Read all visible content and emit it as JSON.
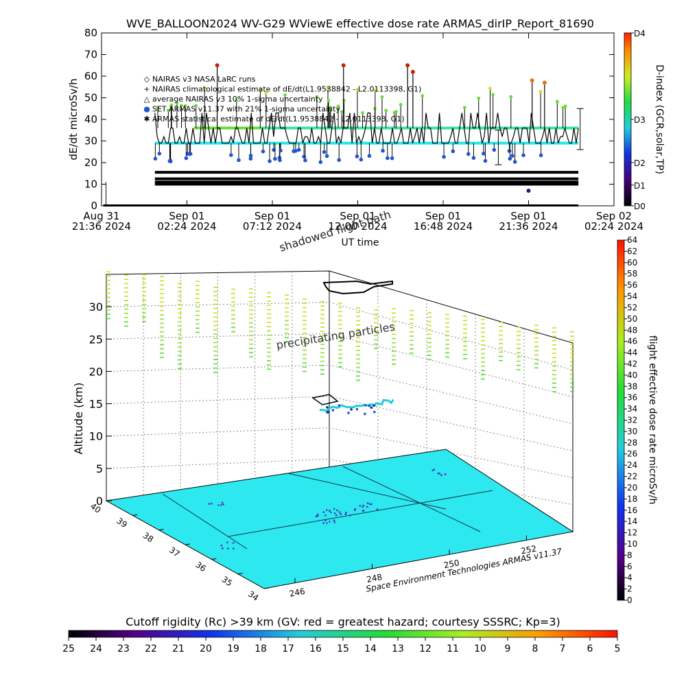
{
  "colors": {
    "ground": "#2ee8f0",
    "cyan_band": "#22e6ee",
    "accent_green": "#66dd33",
    "accent_yellow": "#ccdd22",
    "marker_blue": "#2255cc",
    "marker_red": "#cc2200"
  },
  "chart_data": [
    {
      "type": "line",
      "title": "WVE_BALLOON2024 WV-G29 WViewE effective dose rate ARMAS_dirIP_Report_81690",
      "xlabel": "UT time",
      "ylabel": "dE/dt microSv/h",
      "ylim": [
        0,
        80
      ],
      "yticks": [
        "0",
        "10",
        "20",
        "30",
        "40",
        "50",
        "60",
        "70",
        "80"
      ],
      "xticks": [
        {
          "day": "Aug 31",
          "time": "21:36 2024",
          "hours": 0.0
        },
        {
          "day": "Sep 01",
          "time": "02:24 2024",
          "hours": 4.8
        },
        {
          "day": "Sep 01",
          "time": "07:12 2024",
          "hours": 9.6
        },
        {
          "day": "Sep 01",
          "time": "12:00 2024",
          "hours": 14.4
        },
        {
          "day": "Sep 01",
          "time": "16:48 2024",
          "hours": 19.2
        },
        {
          "day": "Sep 01",
          "time": "21:36 2024",
          "hours": 24.0
        },
        {
          "day": "Sep 02",
          "time": "02:24 2024",
          "hours": 28.8
        }
      ],
      "xlim_hours": [
        0,
        28.8
      ],
      "legend": [
        {
          "symbol": "◇",
          "text": "NAIRAS v3 NASA LaRC runs"
        },
        {
          "symbol": "+",
          "text": "NAIRAS climatological estimate of dE/dt(L1.9538842 - L2.0113398, G1)"
        },
        {
          "symbol": "△",
          "text": "average NAIRAS v3 10% 1-sigma uncertainty"
        },
        {
          "symbol": "●",
          "text": "SET ARMAS v11.37 with 21% 1-sigma uncertainty"
        },
        {
          "symbol": "✱",
          "text": "ARMAS statistical estimate of dE/dt(L1.9538842 - L2.0113398, G1)"
        }
      ],
      "legend_placement": "top-left",
      "series": [
        {
          "name": "SET ARMAS v11.37 with 21% 1-sigma uncertainty",
          "x_hours_range": [
            3.0,
            26.8
          ],
          "baseline": 29,
          "upper_level": 36,
          "peak_values": [
            65,
            65,
            65,
            62,
            58,
            57
          ]
        },
        {
          "name": "ARMAS statistical estimate of dE/dt(L1.9538842 - L2.0113398, G1)",
          "levels": [
            15.5,
            12.5,
            11,
            10
          ]
        },
        {
          "name": "NAIRAS climatological estimate of dE/dt(L1.9538842 - L2.0113398, G1)",
          "levels": [
            0
          ]
        }
      ],
      "annotations": [
        "shadowed flight path"
      ],
      "colorbar": {
        "label": "D-index (GCR,solar,TP)",
        "ticks": [
          "D0",
          "D1",
          "D2",
          "D3",
          "D4"
        ]
      }
    },
    {
      "type": "scatter",
      "title": "",
      "zlabel": "Altitude (km)",
      "zticks": [
        "0",
        "5",
        "10",
        "15",
        "20",
        "25",
        "30"
      ],
      "zlim": [
        0,
        35
      ],
      "lat_ticks": [
        "34",
        "35",
        "36",
        "37",
        "38",
        "39",
        "40"
      ],
      "lon_ticks": [
        "246",
        "248",
        "250",
        "252"
      ],
      "annotations": [
        "precipitating particles"
      ],
      "credit": "Space Environment Technologies ARMAS v11.37",
      "colorbar": {
        "label": "flight effective dose rate microSv/h",
        "range": [
          0,
          64
        ],
        "ticks": [
          "0",
          "2",
          "4",
          "6",
          "8",
          "10",
          "12",
          "14",
          "16",
          "18",
          "20",
          "22",
          "24",
          "26",
          "28",
          "30",
          "32",
          "34",
          "36",
          "38",
          "40",
          "42",
          "44",
          "46",
          "48",
          "50",
          "52",
          "54",
          "56",
          "58",
          "60",
          "62",
          "64"
        ]
      }
    }
  ],
  "bottom_colorbar": {
    "title": "Cutoff rigidity (Rc) >39 km (GV: red = greatest hazard; courtesy SSSRC; Kp=3)",
    "ticks": [
      "25",
      "24",
      "23",
      "22",
      "21",
      "20",
      "19",
      "18",
      "17",
      "16",
      "15",
      "14",
      "13",
      "12",
      "11",
      "10",
      "9",
      "8",
      "7",
      "6",
      "5"
    ]
  }
}
